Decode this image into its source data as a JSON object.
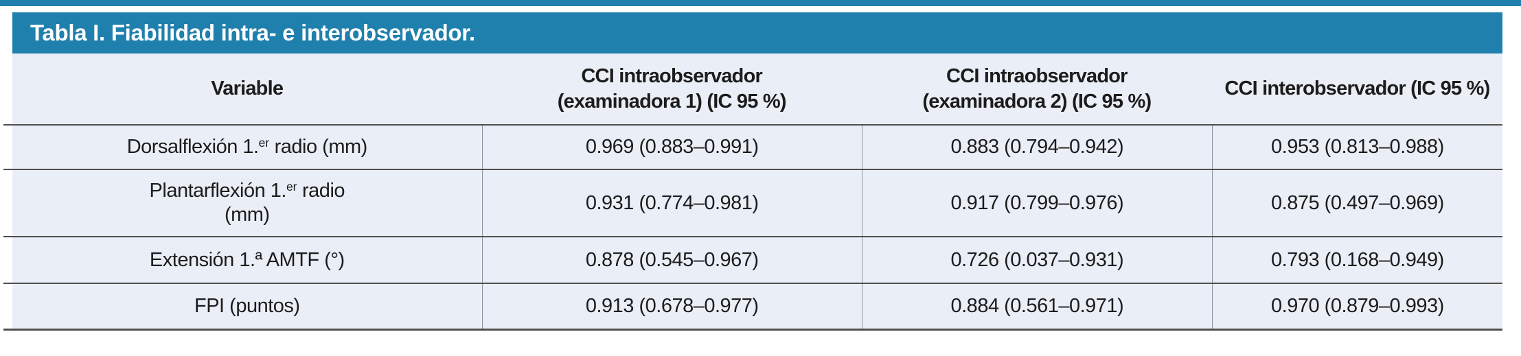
{
  "page": {
    "colors": {
      "accent": "#2080ad",
      "row_bg": "#eaeef6",
      "border": "#4f4f4f",
      "divider": "#8b939e",
      "text": "#1c1c1c",
      "title_text": "#ffffff"
    }
  },
  "table": {
    "title": "Tabla I. Fiabilidad intra- e interobservador.",
    "headers": [
      {
        "line1": "Variable",
        "line2": ""
      },
      {
        "line1": "CCI intraobservador",
        "line2": "(examinadora 1) (IC 95 %)"
      },
      {
        "line1": "CCI intraobservador",
        "line2": "(examinadora 2) (IC 95 %)"
      },
      {
        "line1": "CCI interobservador (IC 95 %)",
        "line2": ""
      }
    ],
    "rows": [
      {
        "variable": {
          "pre": "Dorsalflexión 1.",
          "sup": "er",
          "post": " radio (mm)",
          "line2": ""
        },
        "values": [
          "0.969 (0.883–0.991)",
          "0.883 (0.794–0.942)",
          "0.953 (0.813–0.988)"
        ]
      },
      {
        "variable": {
          "pre": "Plantarflexión 1.",
          "sup": "er",
          "post": " radio",
          "line2": "(mm)"
        },
        "values": [
          "0.931 (0.774–0.981)",
          "0.917 (0.799–0.976)",
          "0.875 (0.497–0.969)"
        ]
      },
      {
        "variable": {
          "pre": "Extensión 1.ª AMTF (°)",
          "sup": "",
          "post": "",
          "line2": ""
        },
        "values": [
          "0.878 (0.545–0.967)",
          "0.726 (0.037–0.931)",
          "0.793 (0.168–0.949)"
        ]
      },
      {
        "variable": {
          "pre": "FPI (puntos)",
          "sup": "",
          "post": "",
          "line2": ""
        },
        "values": [
          "0.913 (0.678–0.977)",
          "0.884 (0.561–0.971)",
          "0.970 (0.879–0.993)"
        ]
      }
    ]
  }
}
